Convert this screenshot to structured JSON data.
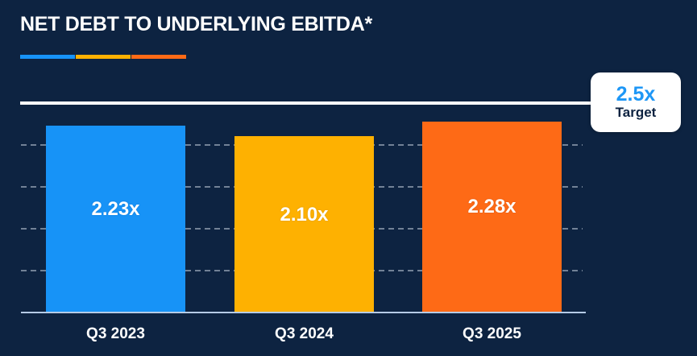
{
  "header": {
    "title": "NET DEBT TO UNDERLYING EBITDA*",
    "accent_colors": [
      "#1793F7",
      "#FEB101",
      "#FE6A16"
    ]
  },
  "chart_data": {
    "type": "bar",
    "title": "NET DEBT TO UNDERLYING EBITDA*",
    "categories": [
      "Q3 2023",
      "Q3 2024",
      "Q3 2025"
    ],
    "values": [
      2.23,
      2.1,
      2.28
    ],
    "value_labels": [
      "2.23x",
      "2.10x",
      "2.28x"
    ],
    "bar_colors": [
      "#1793F7",
      "#FEB101",
      "#FE6A16"
    ],
    "ylim": [
      0,
      2.6
    ],
    "gridline_values": [
      0.5,
      1.0,
      1.5,
      2.0
    ],
    "grid_style": "dashed-horizontal",
    "legend": "none",
    "xlabel": "",
    "ylabel": "",
    "target": {
      "value": 2.5,
      "value_label": "2.5x",
      "caption": "Target"
    }
  },
  "colors": {
    "background": "#0D2341",
    "title_text": "#FFFFFF",
    "bar_label_text": "#FFFFFF",
    "axis_label_text": "#FFFFFF",
    "target_line": "#FFFFFF",
    "target_value_text": "#1E97F6",
    "target_caption_text": "#0D2341",
    "callout_background": "#FFFFFF",
    "baseline": "#B5CBE6",
    "gridline": "#8B99AC"
  }
}
